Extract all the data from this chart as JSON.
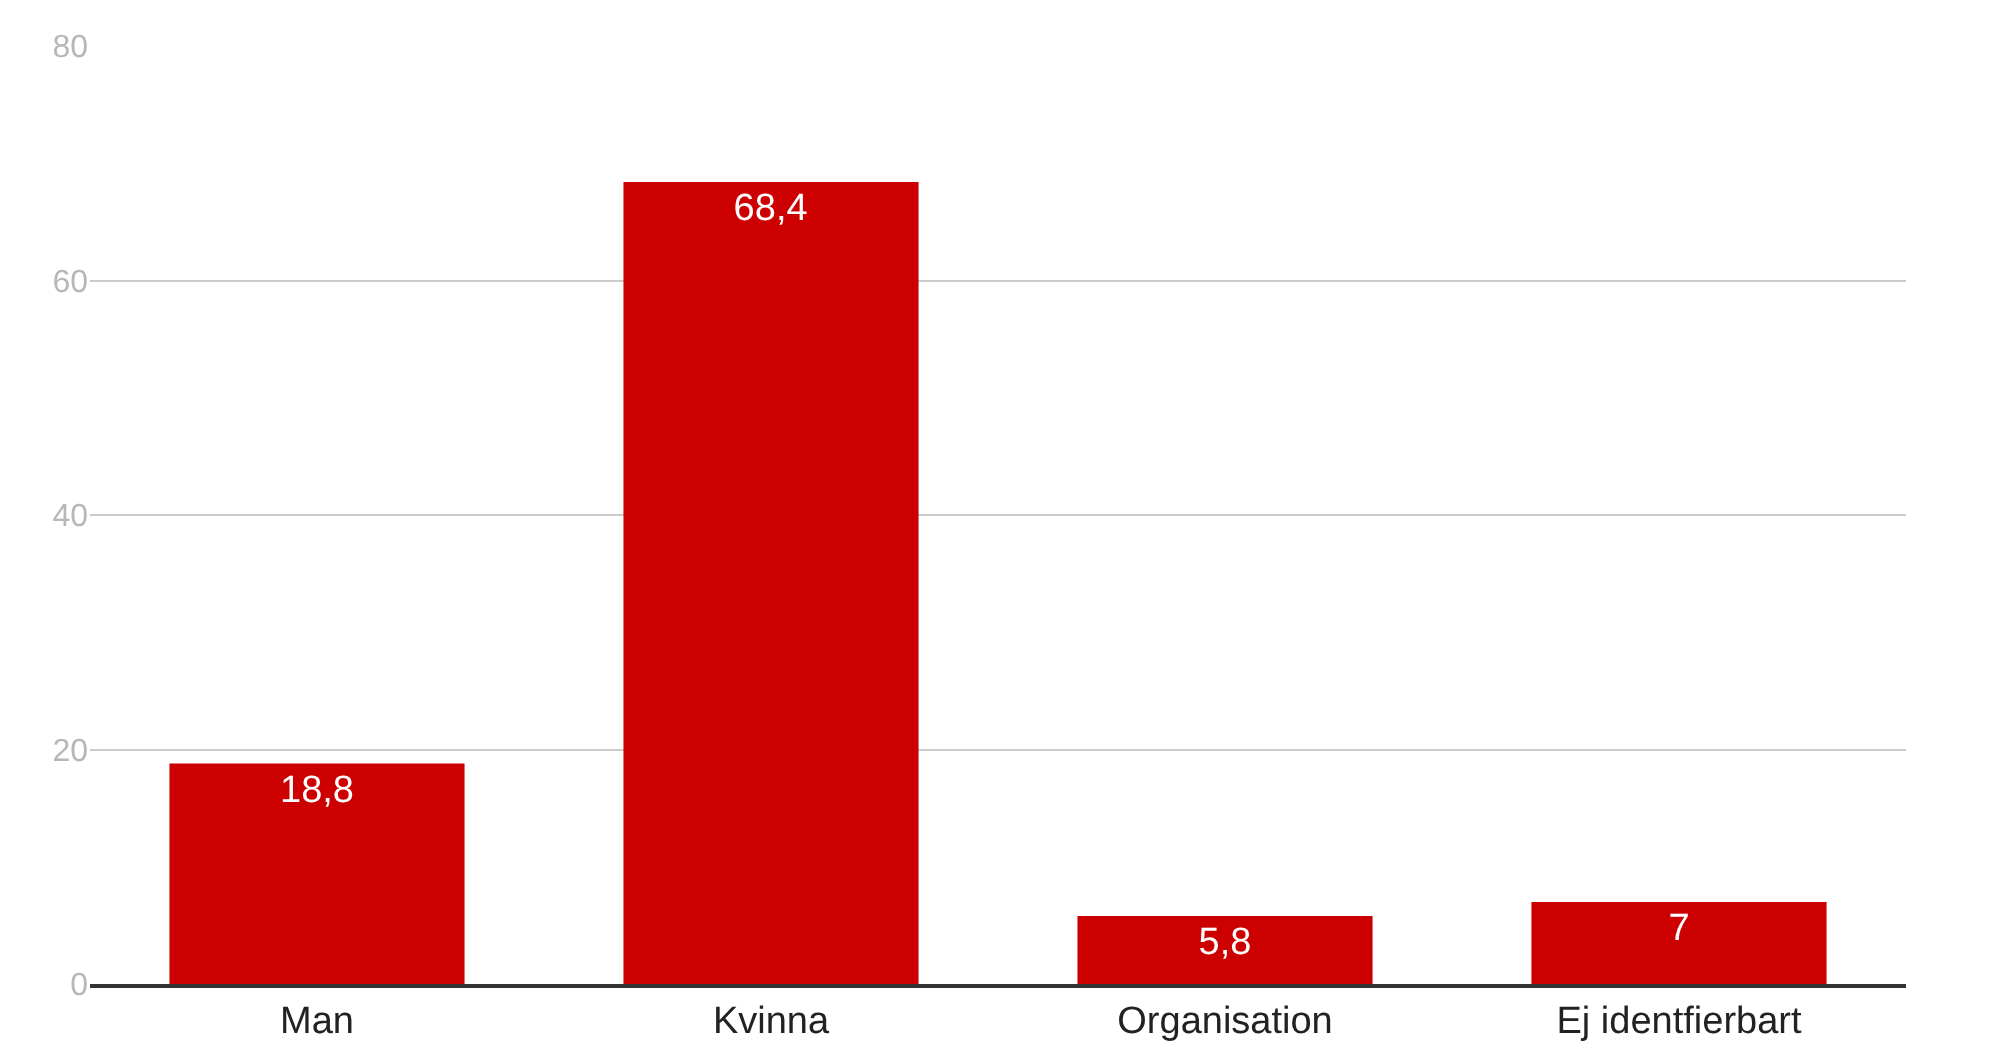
{
  "chart_data": {
    "type": "bar",
    "categories": [
      "Man",
      "Kvinna",
      "Organisation",
      "Ej identfierbart"
    ],
    "values": [
      18.8,
      68.4,
      5.8,
      7
    ],
    "value_labels": [
      "18,8",
      "68,4",
      "5,8",
      "7"
    ],
    "color": "#cc0000",
    "ylim": [
      0,
      80
    ],
    "yticks": [
      0,
      20,
      40,
      60,
      80
    ],
    "grid": "y"
  }
}
